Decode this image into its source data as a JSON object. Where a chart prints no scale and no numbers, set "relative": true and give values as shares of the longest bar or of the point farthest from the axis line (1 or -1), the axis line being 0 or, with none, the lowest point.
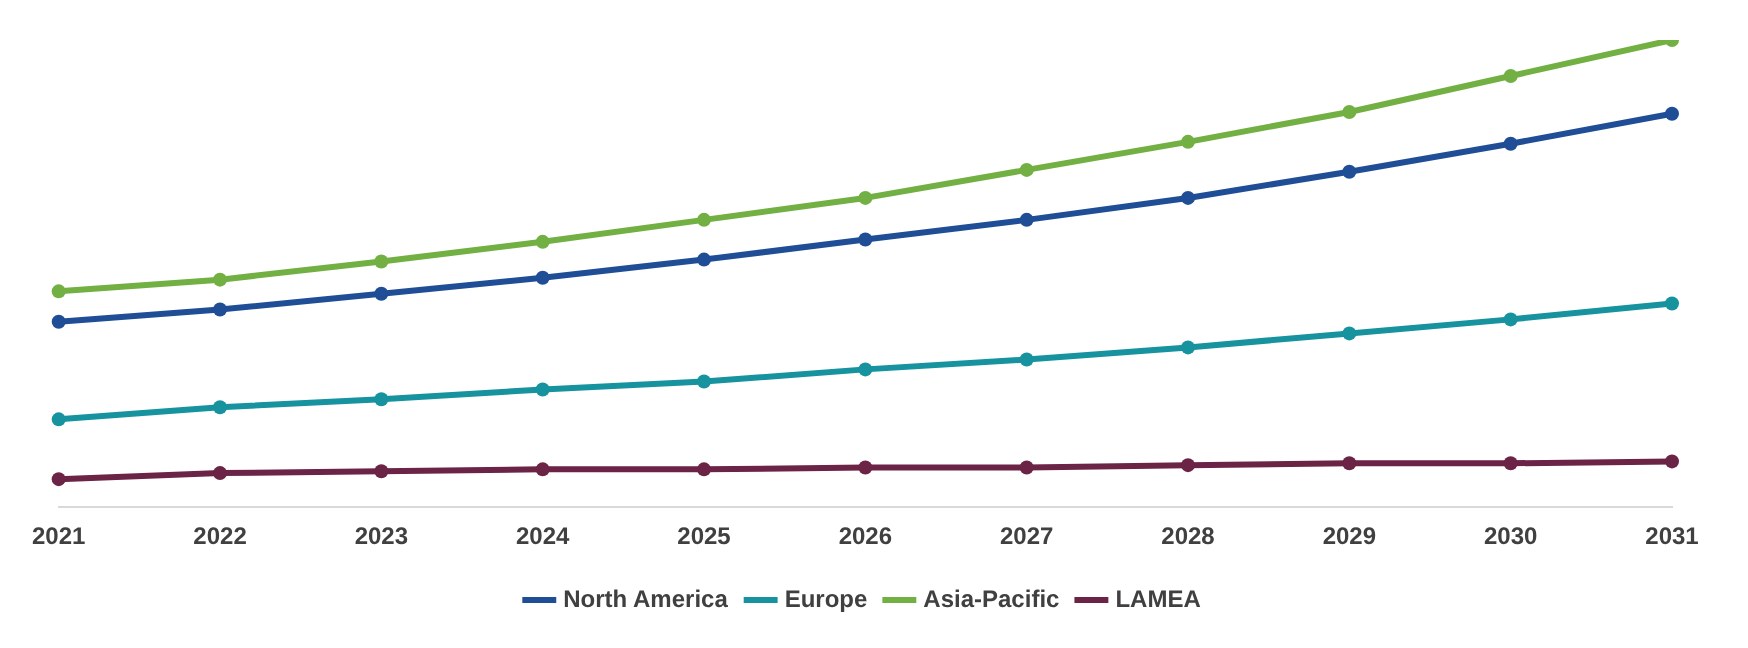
{
  "chart_data": {
    "type": "line",
    "relative": true,
    "legend": "bottom",
    "marker": "circle",
    "categories": [
      "2021",
      "2022",
      "2023",
      "2024",
      "2025",
      "2026",
      "2027",
      "2028",
      "2029",
      "2030",
      "2031"
    ],
    "series": [
      {
        "name": "North America",
        "color": "#1f4e96",
        "values": [
          0.397,
          0.423,
          0.457,
          0.491,
          0.53,
          0.573,
          0.615,
          0.662,
          0.718,
          0.778,
          0.842
        ]
      },
      {
        "name": "Europe",
        "color": "#16939f",
        "values": [
          0.188,
          0.214,
          0.231,
          0.252,
          0.269,
          0.295,
          0.316,
          0.342,
          0.372,
          0.402,
          0.436
        ]
      },
      {
        "name": "Asia-Pacific",
        "color": "#72b043",
        "values": [
          0.462,
          0.487,
          0.526,
          0.568,
          0.615,
          0.662,
          0.722,
          0.782,
          0.846,
          0.923,
          1
        ]
      },
      {
        "name": "LAMEA",
        "color": "#6b2346",
        "values": [
          0.06,
          0.073,
          0.077,
          0.081,
          0.081,
          0.085,
          0.085,
          0.09,
          0.094,
          0.094,
          0.098
        ]
      }
    ]
  }
}
